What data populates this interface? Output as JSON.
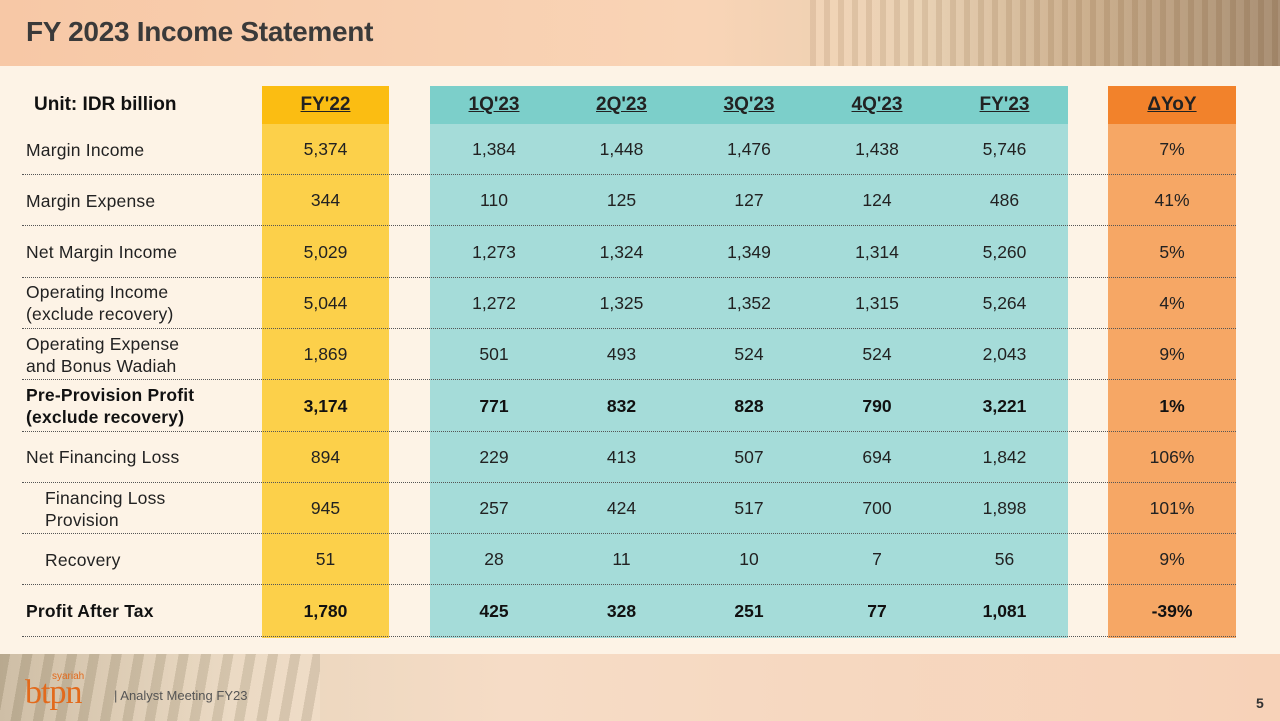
{
  "title": "FY 2023 Income Statement",
  "unit": "Unit: IDR billion",
  "columns": {
    "fy22": "FY'22",
    "q1": "1Q'23",
    "q2": "2Q'23",
    "q3": "3Q'23",
    "q4": "4Q'23",
    "fy23": "FY'23",
    "yoy": "ΔYoY"
  },
  "rows": [
    {
      "label": "Margin Income",
      "fy22": "5,374",
      "q1": "1,384",
      "q2": "1,448",
      "q3": "1,476",
      "q4": "1,438",
      "fy23": "5,746",
      "yoy": "7%"
    },
    {
      "label": "Margin Expense",
      "fy22": "344",
      "q1": "110",
      "q2": "125",
      "q3": "127",
      "q4": "124",
      "fy23": "486",
      "yoy": "41%"
    },
    {
      "label": "Net Margin Income",
      "fy22": "5,029",
      "q1": "1,273",
      "q2": "1,324",
      "q3": "1,349",
      "q4": "1,314",
      "fy23": "5,260",
      "yoy": "5%"
    },
    {
      "label": "Operating Income\n(exclude recovery)",
      "fy22": "5,044",
      "q1": "1,272",
      "q2": "1,325",
      "q3": "1,352",
      "q4": "1,315",
      "fy23": "5,264",
      "yoy": "4%"
    },
    {
      "label": "Operating Expense\nand Bonus Wadiah",
      "fy22": "1,869",
      "q1": "501",
      "q2": "493",
      "q3": "524",
      "q4": "524",
      "fy23": "2,043",
      "yoy": "9%"
    },
    {
      "label": "Pre-Provision Profit\n(exclude recovery)",
      "fy22": "3,174",
      "q1": "771",
      "q2": "832",
      "q3": "828",
      "q4": "790",
      "fy23": "3,221",
      "yoy": "1%"
    },
    {
      "label": "Net Financing Loss",
      "fy22": "894",
      "q1": "229",
      "q2": "413",
      "q3": "507",
      "q4": "694",
      "fy23": "1,842",
      "yoy": "106%"
    },
    {
      "label": "Financing Loss\nProvision",
      "fy22": "945",
      "q1": "257",
      "q2": "424",
      "q3": "517",
      "q4": "700",
      "fy23": "1,898",
      "yoy": "101%"
    },
    {
      "label": "Recovery",
      "fy22": "51",
      "q1": "28",
      "q2": "11",
      "q3": "10",
      "q4": "7",
      "fy23": "56",
      "yoy": "9%"
    },
    {
      "label": "Profit After Tax",
      "fy22": "1,780",
      "q1": "425",
      "q2": "328",
      "q3": "251",
      "q4": "77",
      "fy23": "1,081",
      "yoy": "-39%"
    }
  ],
  "footer": {
    "logo_sub": "syariah",
    "logo": "btpn",
    "text": "| Analyst Meeting FY23",
    "page": "5"
  },
  "colors": {
    "fy22_header": "#fbbd12",
    "fy22_body": "#fcd04a",
    "quarter_header": "#7ccfca",
    "quarter_body": "#a5dcd9",
    "yoy_header": "#f2822b",
    "yoy_body": "#f6a765",
    "brand": "#e26a1c"
  }
}
